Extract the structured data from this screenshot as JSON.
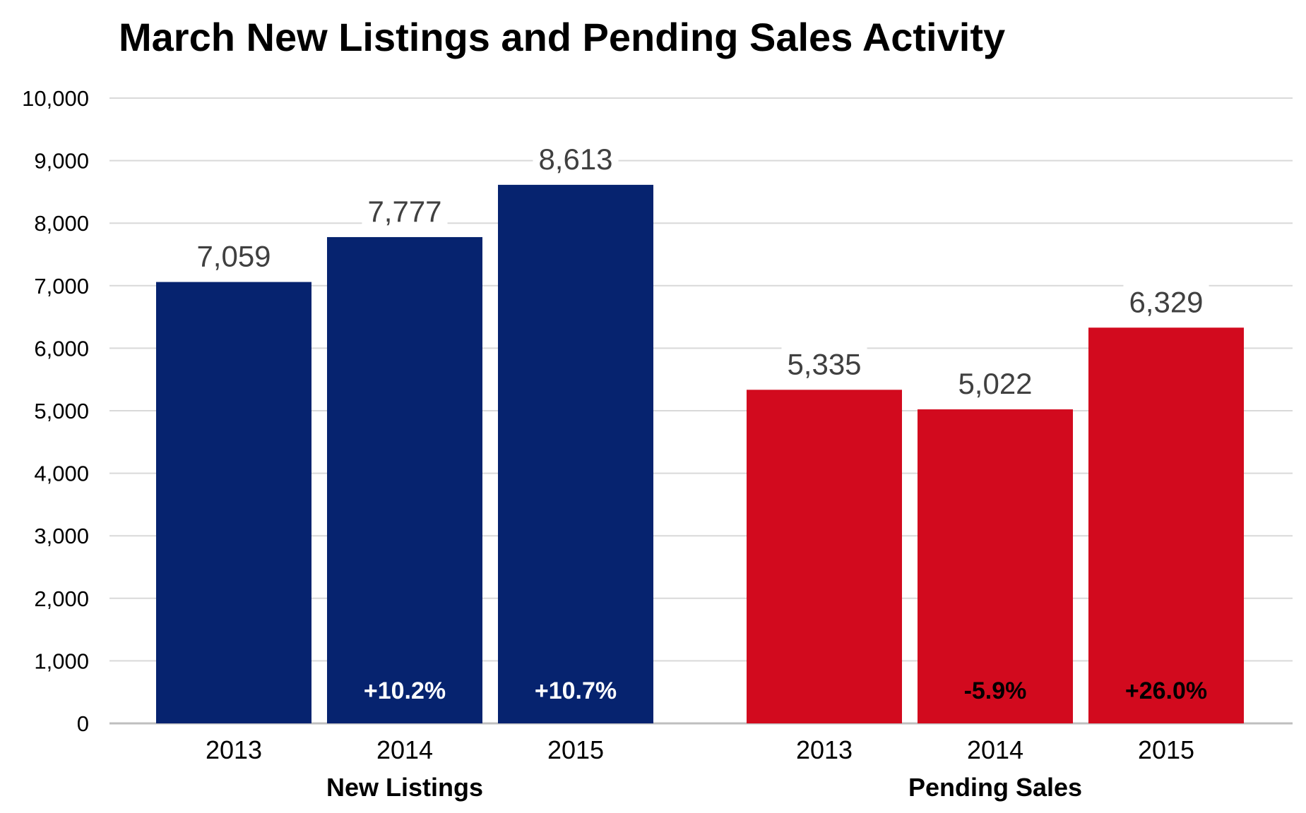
{
  "chart_data": {
    "type": "bar",
    "title": "March New Listings and Pending Sales Activity",
    "ylim": [
      0,
      10000
    ],
    "yticks": [
      "0",
      "1,000",
      "2,000",
      "3,000",
      "4,000",
      "5,000",
      "6,000",
      "7,000",
      "8,000",
      "9,000",
      "10,000"
    ],
    "grid": true,
    "groups": [
      {
        "name": "New Listings",
        "color": "#06236f",
        "pct_color": "#ffffff",
        "bars": [
          {
            "category": "2013",
            "value": 7059,
            "label": "7,059",
            "change": ""
          },
          {
            "category": "2014",
            "value": 7777,
            "label": "7,777",
            "change": "+10.2%"
          },
          {
            "category": "2015",
            "value": 8613,
            "label": "8,613",
            "change": "+10.7%"
          }
        ]
      },
      {
        "name": "Pending Sales",
        "color": "#d20a1e",
        "pct_color": "#000000",
        "bars": [
          {
            "category": "2013",
            "value": 5335,
            "label": "5,335",
            "change": ""
          },
          {
            "category": "2014",
            "value": 5022,
            "label": "5,022",
            "change": "-5.9%"
          },
          {
            "category": "2015",
            "value": 6329,
            "label": "6,329",
            "change": "+26.0%"
          }
        ]
      }
    ]
  }
}
